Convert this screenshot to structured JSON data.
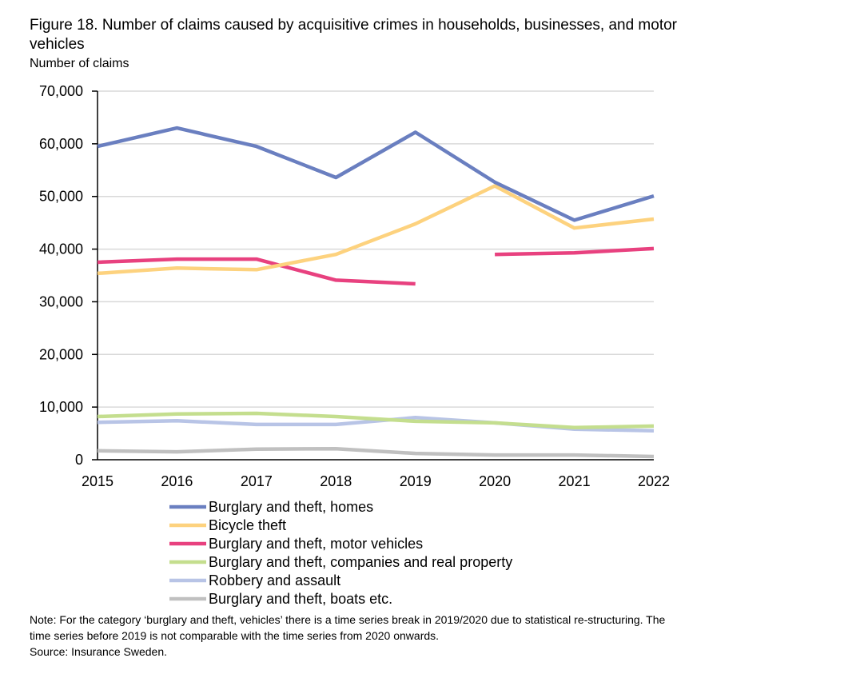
{
  "chart_data": {
    "type": "line",
    "title": "Figure 18. Number of claims caused by acquisitive crimes in households, businesses, and motor vehicles",
    "ylabel": "Number of claims",
    "xlabel": "",
    "categories": [
      "2015",
      "2016",
      "2017",
      "2018",
      "2019",
      "2020",
      "2021",
      "2022"
    ],
    "ylim": [
      0,
      70000
    ],
    "yticks": [
      "0",
      "10,000",
      "20,000",
      "30,000",
      "40,000",
      "50,000",
      "60,000",
      "70,000"
    ],
    "grid": true,
    "legend_position": "bottom",
    "series": [
      {
        "name": "Burglary and theft, homes",
        "color": "#6a7fc0",
        "values": [
          59500,
          63000,
          59500,
          53600,
          62200,
          52700,
          45500,
          50100
        ]
      },
      {
        "name": "Bicycle theft",
        "color": "#fdd27e",
        "values": [
          35400,
          36400,
          36100,
          39000,
          44800,
          52000,
          44000,
          45700
        ]
      },
      {
        "name": "Burglary and theft, motor vehicles",
        "color": "#e8417f",
        "values": [
          37500,
          38100,
          38100,
          34100,
          33400,
          39000,
          39300,
          40100
        ],
        "break_after": "2019"
      },
      {
        "name": "Burglary and theft, companies and real property",
        "color": "#c4de8e",
        "values": [
          8200,
          8700,
          8800,
          8200,
          7300,
          7000,
          6100,
          6400
        ]
      },
      {
        "name": "Robbery and assault",
        "color": "#b8c4e6",
        "values": [
          7100,
          7400,
          6700,
          6700,
          8000,
          7000,
          5800,
          5500
        ]
      },
      {
        "name": "Burglary and theft, boats etc.",
        "color": "#c0c0c0",
        "values": [
          1700,
          1500,
          2000,
          2100,
          1200,
          900,
          900,
          600
        ]
      }
    ]
  },
  "note": "Note: For the category ‘burglary and theft, vehicles’ there is a time series break in 2019/2020 due to statistical re-structuring. The time series before 2019 is not comparable with the time series from 2020 onwards.",
  "source": "Source: Insurance Sweden."
}
